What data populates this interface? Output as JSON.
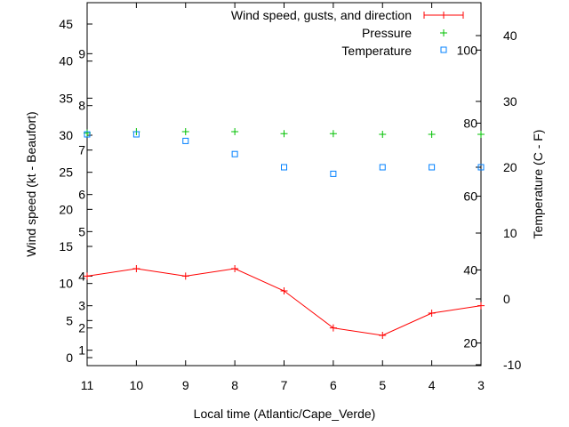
{
  "chart_data": {
    "type": "line",
    "title": "",
    "xlabel": "Local time (Atlantic/Cape_Verde)",
    "ylabel": "Wind speed (kt - Beaufort)",
    "y2label": "Temperature (C - F)",
    "categories": [
      "11",
      "10",
      "9",
      "8",
      "7",
      "6",
      "5",
      "4",
      "3"
    ],
    "yticks": [
      0,
      5,
      10,
      15,
      20,
      25,
      30,
      35,
      40,
      45
    ],
    "beaufort_ticks": [
      {
        "label": "1",
        "kt": 1
      },
      {
        "label": "2",
        "kt": 4
      },
      {
        "label": "3",
        "kt": 7
      },
      {
        "label": "4",
        "kt": 11
      },
      {
        "label": "5",
        "kt": 17
      },
      {
        "label": "6",
        "kt": 22
      },
      {
        "label": "7",
        "kt": 28
      },
      {
        "label": "8",
        "kt": 34
      },
      {
        "label": "9",
        "kt": 41
      }
    ],
    "y2ticks": [
      -10,
      0,
      10,
      20,
      30,
      40
    ],
    "fahrenheit_ticks": [
      {
        "label": "20",
        "c": -6.7
      },
      {
        "label": "40",
        "c": 4.4
      },
      {
        "label": "60",
        "c": 15.6
      },
      {
        "label": "80",
        "c": 26.7
      },
      {
        "label": "100",
        "c": 37.8
      }
    ],
    "ylim": [
      -1,
      48.3
    ],
    "y2lim": [
      -10,
      45
    ],
    "legend_position": "top-right",
    "series": [
      {
        "name": "Wind speed, gusts, and direction",
        "axis": "y",
        "color": "#ff0000",
        "values": [
          11,
          12,
          11,
          12,
          9,
          4,
          3,
          6,
          7
        ]
      },
      {
        "name": "Pressure",
        "axis": "y2",
        "color": "#00c000",
        "values": [
          25.2,
          25.4,
          25.4,
          25.4,
          25.1,
          25.1,
          25.0,
          25.0,
          25.0
        ]
      },
      {
        "name": "Temperature",
        "axis": "y2",
        "color": "#0080ff",
        "values": [
          25,
          25,
          24,
          22,
          20,
          19,
          20,
          20,
          20
        ]
      }
    ]
  }
}
